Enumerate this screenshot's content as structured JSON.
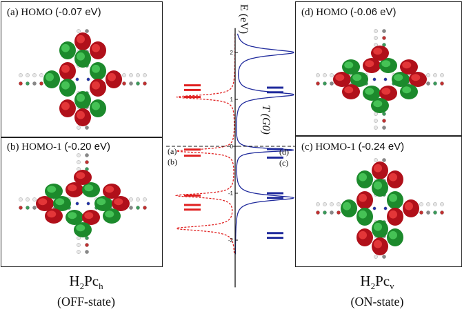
{
  "panels": {
    "a": {
      "tag": "(a) HOMO",
      "energy": "(-0.07 eV)"
    },
    "b": {
      "tag": "(b) HOMO-1",
      "energy": "(-0.20 eV)"
    },
    "d": {
      "tag": "(d) HOMO",
      "energy": "(-0.06 eV)"
    },
    "c": {
      "tag": "(c) HOMO-1",
      "energy": "(-0.24 eV)"
    }
  },
  "captions": {
    "left": {
      "formula_main": "H",
      "formula_sub1": "2",
      "formula_mid": "Pc",
      "formula_sub2": "h",
      "state": "(OFF-state)"
    },
    "right": {
      "formula_main": "H",
      "formula_sub1": "2",
      "formula_mid": "Pc",
      "formula_sub2": "v",
      "state": "(ON-state)"
    }
  },
  "chart_data": {
    "type": "line",
    "ylabel": "E (eV)",
    "xlabel": "T (G0)",
    "ylim": [
      -2.3,
      2.4
    ],
    "y_ticks": [
      "2",
      "1",
      "0",
      "-1",
      "-2"
    ],
    "x_ticks": [
      "1",
      "0.5",
      "0",
      "0.5",
      "1"
    ],
    "x_tick_labels_shown": [
      "1",
      "0",
      "1"
    ],
    "colors": {
      "off_state": "#e02020",
      "on_state": "#1f2a9c"
    },
    "peak_labels": {
      "left": [
        "(a)",
        "(b)"
      ],
      "right": [
        "(d)",
        "(c)"
      ]
    },
    "off_state_levels": [
      1.3,
      1.2,
      1.05,
      -0.07,
      -0.2,
      -1.05,
      -1.25,
      -1.35
    ],
    "on_state_levels": [
      1.25,
      1.15,
      -0.06,
      -0.24,
      -1.0,
      -1.1,
      -1.85,
      -1.95
    ],
    "off_state_resonances": [
      {
        "center": 1.05,
        "width": 0.05
      },
      {
        "center": -0.1,
        "width": 0.045
      },
      {
        "center": -1.05,
        "width": 0.05
      },
      {
        "center": -1.75,
        "width": 0.06
      }
    ],
    "on_state_resonances": [
      {
        "center": 2.0,
        "width": 0.08
      },
      {
        "center": 1.1,
        "width": 0.07
      },
      {
        "center": -0.08,
        "width": 0.04
      },
      {
        "center": -1.1,
        "width": 0.07
      }
    ],
    "fermi_level": 0
  }
}
